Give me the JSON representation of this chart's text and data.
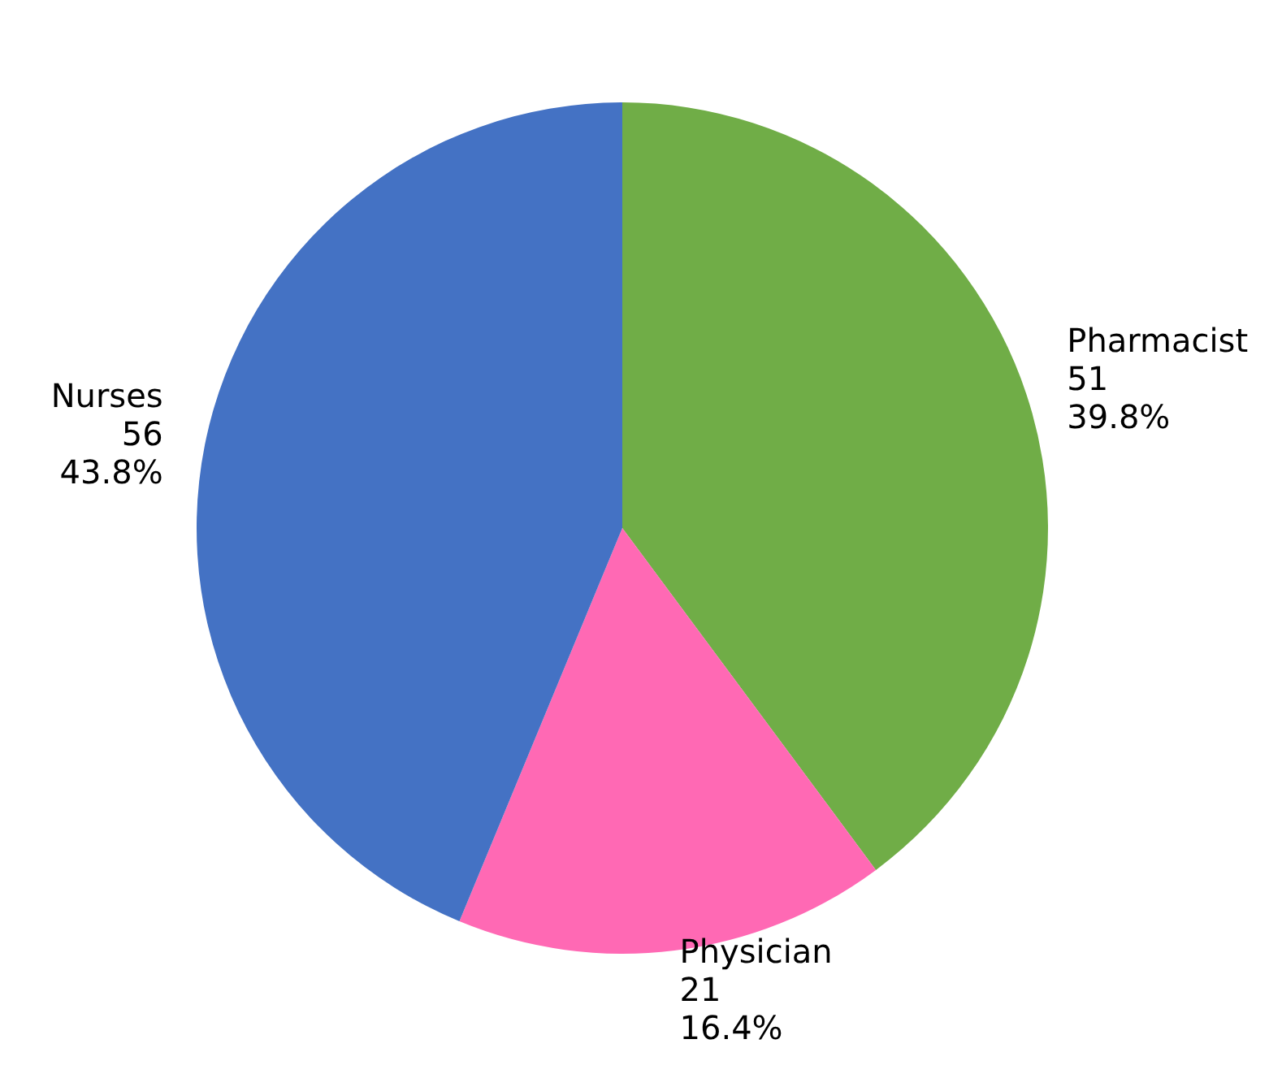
{
  "chart_data": {
    "type": "pie",
    "categories": [
      "Pharmacist",
      "Physician",
      "Nurses"
    ],
    "values": [
      51,
      21,
      56
    ],
    "colors": [
      "#70ad47",
      "#ff69b4",
      "#4472c4"
    ],
    "value_labels": [
      "51\n39.8%",
      "21\n16.4%",
      "56\n43.8%"
    ]
  }
}
